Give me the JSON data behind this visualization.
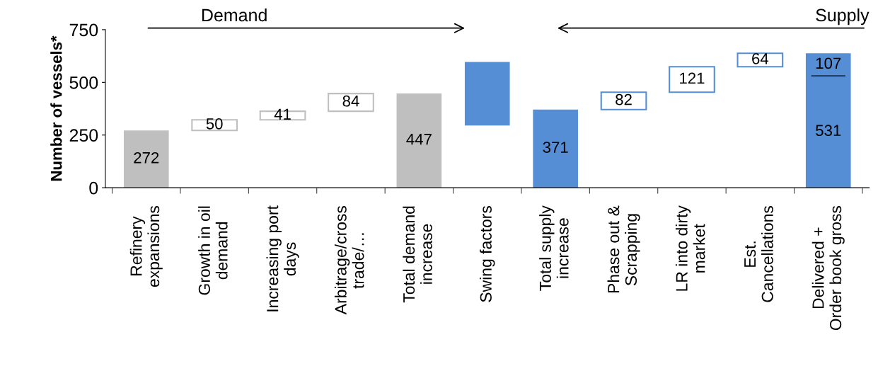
{
  "chart_data": {
    "type": "bar",
    "ylabel": "Number of vessels*",
    "categories": [
      "Refinery\nexpansions",
      "Growth in oil\ndemand",
      "Increasing port\ndays",
      "Arbitrage/cross\ntrade/…",
      "Total demand\nincrease",
      "Swing factors",
      "Total supply\nincrease",
      "Phase out &\nScrapping",
      "LR into dirty\nmarket",
      "Est.\nCancellations",
      "Delivered +\nOrder book gross"
    ],
    "series": [
      {
        "values": [
          272,
          null,
          null,
          null,
          447,
          302,
          371,
          null,
          null,
          null,
          531
        ],
        "base": [
          0,
          null,
          null,
          null,
          0,
          295,
          0,
          null,
          null,
          null,
          0
        ],
        "colors": [
          "#bfbfbf",
          null,
          null,
          null,
          "#bfbfbf",
          "#558ed5",
          "#558ed5",
          null,
          null,
          null,
          "#558ed5"
        ],
        "value_labels": [
          "272",
          null,
          null,
          null,
          "447",
          null,
          "371",
          null,
          null,
          null,
          "531"
        ]
      },
      {
        "color": "#ffffff",
        "values": [
          null,
          50,
          41,
          84,
          null,
          null,
          null,
          82,
          121,
          64,
          null
        ],
        "base": [
          null,
          272,
          322,
          363,
          null,
          null,
          null,
          371,
          453,
          574,
          null
        ],
        "colors": [
          null,
          "#bfbfbf",
          "#bfbfbf",
          "#bfbfbf",
          null,
          null,
          null,
          "#558ed5",
          "#558ed5",
          "#558ed5",
          null
        ],
        "value_labels": [
          null,
          "50",
          "41",
          "84",
          null,
          null,
          null,
          "82",
          "121",
          "64",
          null
        ]
      },
      {
        "values": [
          null,
          null,
          null,
          null,
          null,
          null,
          null,
          null,
          null,
          null,
          107
        ],
        "base": [
          null,
          null,
          null,
          null,
          null,
          null,
          null,
          null,
          null,
          null,
          531
        ],
        "colors": [
          null,
          null,
          null,
          null,
          null,
          null,
          null,
          null,
          null,
          null,
          "#558ed5"
        ],
        "value_labels": [
          null,
          null,
          null,
          null,
          null,
          null,
          null,
          null,
          null,
          null,
          "107"
        ]
      }
    ],
    "ylim": [
      0,
      750
    ],
    "yticks": [
      0,
      250,
      500,
      750
    ],
    "grid": false,
    "legend": false,
    "annotations": [
      "Demand",
      "Supply"
    ]
  }
}
